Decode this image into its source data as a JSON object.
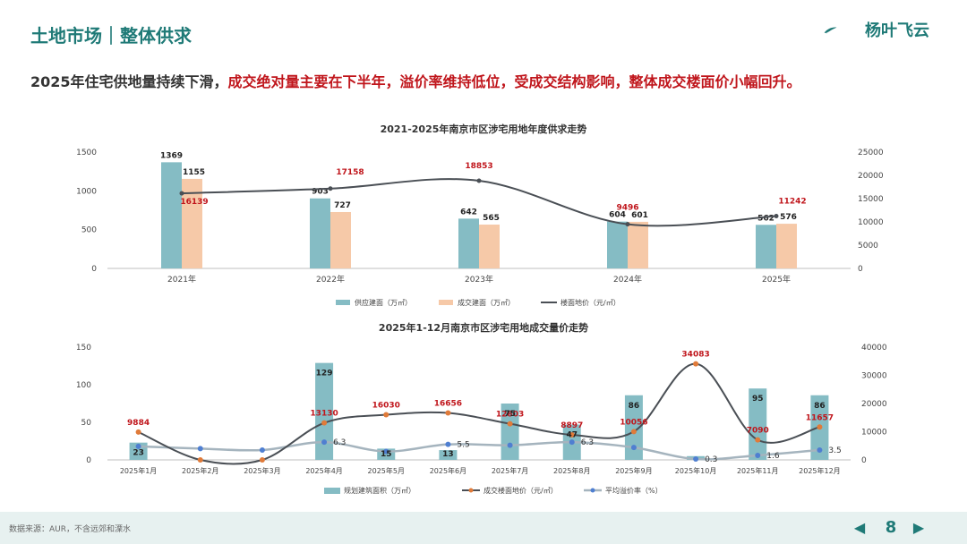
{
  "header": {
    "section_title": "土地市场｜整体供求",
    "logo_text": "杨叶飞云",
    "headline_part1": "2025年住宅供地量持续下滑，",
    "headline_part2": "成交绝对量主要在下半年，溢价率维持低位，受成交结构影响，整体成交楼面价小幅回升。"
  },
  "colors": {
    "teal": "#85bcc4",
    "peach": "#f6c9a8",
    "dark_line": "#4a4f55",
    "orange_line": "#e07b3a",
    "grey_line": "#a5b4be",
    "blue_dot": "#4f7fd1",
    "red_label": "#c0161c",
    "brand": "#1f7a77"
  },
  "chart_data": [
    {
      "type": "bar",
      "title": "2021-2025年南京市区涉宅用地年度供求走势",
      "categories": [
        "2021年",
        "2022年",
        "2023年",
        "2024年",
        "2025年"
      ],
      "series": [
        {
          "name": "供应建面（万㎡）",
          "kind": "bar",
          "axis": "left",
          "values": [
            1369,
            903,
            642,
            604,
            562
          ],
          "value_labels": [
            "1369",
            "903",
            "642",
            "604",
            "562"
          ]
        },
        {
          "name": "成交建面（万㎡）",
          "kind": "bar",
          "axis": "left",
          "values": [
            1155,
            727,
            565,
            601,
            576
          ],
          "value_labels": [
            "1155",
            "727",
            "565",
            "601",
            "576"
          ]
        },
        {
          "name": "楼面地价（元/㎡）",
          "kind": "line",
          "axis": "right",
          "values": [
            16139,
            17158,
            18853,
            9496,
            11242
          ],
          "value_labels": [
            "16139",
            "17158",
            "18853",
            "9496",
            "11242"
          ]
        }
      ],
      "left_axis": {
        "min": 0,
        "max": 1500,
        "ticks": [
          "0",
          "500",
          "1000",
          "1500"
        ]
      },
      "right_axis": {
        "min": 0,
        "max": 25000,
        "ticks": [
          "0",
          "5000",
          "10000",
          "15000",
          "20000",
          "25000"
        ]
      },
      "legend_position": "bottom"
    },
    {
      "type": "bar",
      "title": "2025年1-12月南京市区涉宅用地成交量价走势",
      "categories": [
        "2025年1月",
        "2025年2月",
        "2025年3月",
        "2025年4月",
        "2025年5月",
        "2025年6月",
        "2025年7月",
        "2025年8月",
        "2025年9月",
        "2025年10月",
        "2025年11月",
        "2025年12月"
      ],
      "series": [
        {
          "name": "规划建筑面积（万㎡）",
          "kind": "bar",
          "axis": "left",
          "values": [
            23,
            0,
            0,
            129,
            15,
            13,
            75,
            47,
            86,
            5,
            95,
            86
          ],
          "value_labels": [
            "23",
            "",
            "",
            "129",
            "15",
            "13",
            "75",
            "47",
            "86",
            "",
            "95",
            "86"
          ]
        },
        {
          "name": "成交楼面地价（元/㎡）",
          "kind": "line",
          "axis": "right",
          "values": [
            9884,
            0,
            0,
            13130,
            16030,
            16656,
            12803,
            8897,
            10056,
            34083,
            7090,
            11657
          ],
          "value_labels": [
            "9884",
            "",
            "",
            "13130",
            "16030",
            "16656",
            "12803",
            "8897",
            "10056",
            "34083",
            "7090",
            "11657"
          ]
        },
        {
          "name": "平均溢价率（%）",
          "kind": "line",
          "axis": "right-scaled",
          "values": [
            4.8,
            4,
            3.5,
            6.3,
            3,
            5.5,
            5.2,
            6.3,
            4.4,
            0.3,
            1.6,
            3.5
          ],
          "value_labels": [
            "",
            "",
            "",
            "6.3",
            "",
            "5.5",
            "",
            "6.3",
            "",
            "0.3",
            "1.6",
            "3.5"
          ]
        }
      ],
      "left_axis": {
        "min": 0,
        "max": 150,
        "ticks": [
          "0",
          "50",
          "100",
          "150"
        ]
      },
      "right_axis": {
        "min": 0,
        "max": 40000,
        "ticks": [
          "0",
          "10000",
          "20000",
          "30000",
          "40000"
        ]
      },
      "legend_position": "bottom"
    }
  ],
  "footer": {
    "source": "数据来源：AUR，不含远郊和溧水",
    "page_number": "8",
    "prev_icon": "triangle-left-icon",
    "next_icon": "triangle-right-icon"
  }
}
